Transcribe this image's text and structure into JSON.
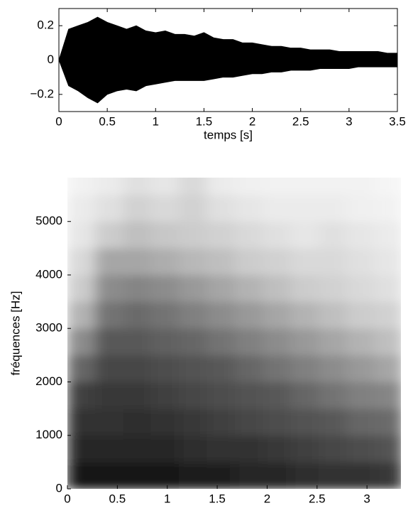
{
  "chart_data": [
    {
      "type": "area",
      "xlabel": "temps [s]",
      "x": [
        0,
        0.1,
        0.2,
        0.3,
        0.4,
        0.5,
        0.6,
        0.7,
        0.8,
        0.9,
        1,
        1.1,
        1.2,
        1.3,
        1.4,
        1.5,
        1.6,
        1.7,
        1.8,
        1.9,
        2,
        2.1,
        2.2,
        2.3,
        2.4,
        2.5,
        2.6,
        2.7,
        2.8,
        2.9,
        3,
        3.1,
        3.2,
        3.3,
        3.4,
        3.5
      ],
      "y_max": [
        0,
        0.18,
        0.2,
        0.22,
        0.25,
        0.22,
        0.2,
        0.18,
        0.2,
        0.17,
        0.16,
        0.17,
        0.15,
        0.15,
        0.14,
        0.16,
        0.13,
        0.12,
        0.12,
        0.1,
        0.1,
        0.09,
        0.08,
        0.08,
        0.07,
        0.07,
        0.06,
        0.06,
        0.06,
        0.05,
        0.05,
        0.05,
        0.05,
        0.05,
        0.04,
        0.04
      ],
      "y_min": [
        0,
        -0.15,
        -0.18,
        -0.22,
        -0.25,
        -0.2,
        -0.18,
        -0.17,
        -0.18,
        -0.15,
        -0.14,
        -0.13,
        -0.12,
        -0.12,
        -0.12,
        -0.12,
        -0.11,
        -0.1,
        -0.1,
        -0.09,
        -0.08,
        -0.08,
        -0.07,
        -0.07,
        -0.06,
        -0.06,
        -0.06,
        -0.05,
        -0.05,
        -0.05,
        -0.05,
        -0.04,
        -0.04,
        -0.04,
        -0.04,
        -0.04
      ],
      "color": "#000000",
      "xlim": [
        0,
        3.5
      ],
      "xticks": [
        0,
        0.5,
        1,
        1.5,
        2,
        2.5,
        3,
        3.5
      ],
      "ylim": [
        -0.3,
        0.3
      ],
      "yticks": [
        {
          "value": -0.2,
          "label": "−0.2"
        },
        0,
        0.2
      ]
    },
    {
      "type": "heatmap",
      "ylabel": "fréquences [Hz]",
      "x_bins": [
        0,
        0.28,
        0.56,
        0.84,
        1.12,
        1.4,
        1.68,
        1.96,
        2.24,
        2.52,
        2.8,
        3.08,
        3.36
      ],
      "y_bins": [
        0,
        500,
        1000,
        1500,
        2000,
        2500,
        3000,
        3500,
        4000,
        4500,
        5000,
        5500,
        6000
      ],
      "z": [
        [
          0.9,
          0.9,
          0.9,
          0.9,
          0.88,
          0.88,
          0.85,
          0.85,
          0.82,
          0.8,
          0.8,
          0.78
        ],
        [
          0.85,
          0.85,
          0.85,
          0.85,
          0.82,
          0.8,
          0.8,
          0.78,
          0.75,
          0.72,
          0.7,
          0.68
        ],
        [
          0.8,
          0.8,
          0.82,
          0.8,
          0.78,
          0.75,
          0.72,
          0.7,
          0.68,
          0.65,
          0.6,
          0.58
        ],
        [
          0.75,
          0.78,
          0.78,
          0.75,
          0.72,
          0.7,
          0.68,
          0.65,
          0.6,
          0.55,
          0.5,
          0.48
        ],
        [
          0.6,
          0.72,
          0.72,
          0.7,
          0.68,
          0.65,
          0.6,
          0.55,
          0.5,
          0.45,
          0.4,
          0.35
        ],
        [
          0.45,
          0.65,
          0.65,
          0.62,
          0.6,
          0.55,
          0.5,
          0.45,
          0.4,
          0.35,
          0.3,
          0.25
        ],
        [
          0.3,
          0.55,
          0.58,
          0.55,
          0.5,
          0.45,
          0.4,
          0.35,
          0.3,
          0.25,
          0.2,
          0.18
        ],
        [
          0.2,
          0.45,
          0.48,
          0.45,
          0.4,
          0.35,
          0.3,
          0.25,
          0.2,
          0.18,
          0.15,
          0.12
        ],
        [
          0.15,
          0.35,
          0.35,
          0.32,
          0.28,
          0.25,
          0.2,
          0.18,
          0.15,
          0.15,
          0.12,
          0.1
        ],
        [
          0.1,
          0.2,
          0.25,
          0.22,
          0.2,
          0.18,
          0.15,
          0.12,
          0.1,
          0.12,
          0.1,
          0.08
        ],
        [
          0.08,
          0.12,
          0.18,
          0.15,
          0.18,
          0.12,
          0.1,
          0.08,
          0.08,
          0.08,
          0.06,
          0.05
        ],
        [
          0.05,
          0.08,
          0.12,
          0.1,
          0.15,
          0.08,
          0.06,
          0.05,
          0.05,
          0.05,
          0.05,
          0.04
        ]
      ],
      "xlim": [
        0,
        3.34
      ],
      "xticks": [
        0,
        0.5,
        1,
        1.5,
        2,
        2.5,
        3
      ],
      "ylim": [
        0,
        5820
      ],
      "yticks": [
        0,
        1000,
        2000,
        3000,
        4000,
        5000
      ]
    }
  ]
}
